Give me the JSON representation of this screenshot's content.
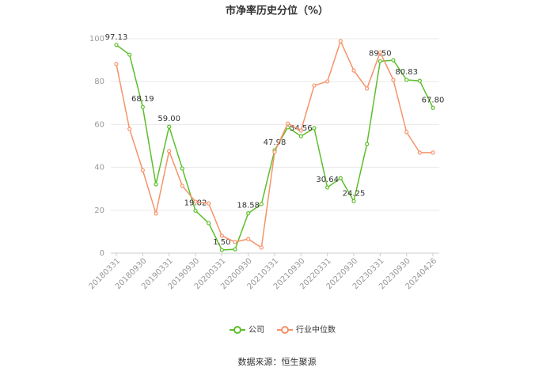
{
  "chart_data": {
    "type": "line",
    "title": "市净率历史分位（%）",
    "source": "数据来源：恒生聚源",
    "categories": [
      "20180331",
      null,
      "20180930",
      null,
      "20190331",
      null,
      "20190930",
      null,
      "20200331",
      null,
      "20200930",
      null,
      "20210331",
      null,
      "20210930",
      null,
      "20220331",
      null,
      "20220930",
      null,
      "20230331",
      null,
      "20230930",
      null,
      "20240426"
    ],
    "series": [
      {
        "name": "公司",
        "color": "#5cbf2a",
        "values": [
          97.13,
          92.6,
          68.19,
          32.1,
          59.0,
          39.5,
          19.82,
          14.0,
          1.5,
          1.8,
          18.58,
          22.9,
          47.98,
          58.7,
          54.56,
          58.3,
          30.64,
          35.0,
          24.25,
          50.9,
          89.5,
          90.0,
          80.83,
          80.4,
          67.8
        ],
        "value_labels": [
          "97.13",
          null,
          "68.19",
          null,
          "59.00",
          null,
          "19.82",
          null,
          "1.50",
          null,
          "18.58",
          null,
          "47.98",
          null,
          "54.56",
          null,
          "30.64",
          null,
          "24.25",
          null,
          "89.50",
          null,
          "80.83",
          null,
          "67.80"
        ]
      },
      {
        "name": "行业中位数",
        "color": "#f5936a",
        "values": [
          88.2,
          57.9,
          38.7,
          18.5,
          47.6,
          31.4,
          24.0,
          23.2,
          8.1,
          5.2,
          6.6,
          2.6,
          47.2,
          60.5,
          57.2,
          78.2,
          80.1,
          98.9,
          85.2,
          76.8,
          93.7,
          80.8,
          56.5,
          46.9,
          46.9
        ]
      }
    ],
    "ylim": [
      0,
      100
    ],
    "yticks": [
      0,
      20,
      40,
      60,
      80,
      100
    ],
    "grid": true,
    "legend": "bottom"
  }
}
